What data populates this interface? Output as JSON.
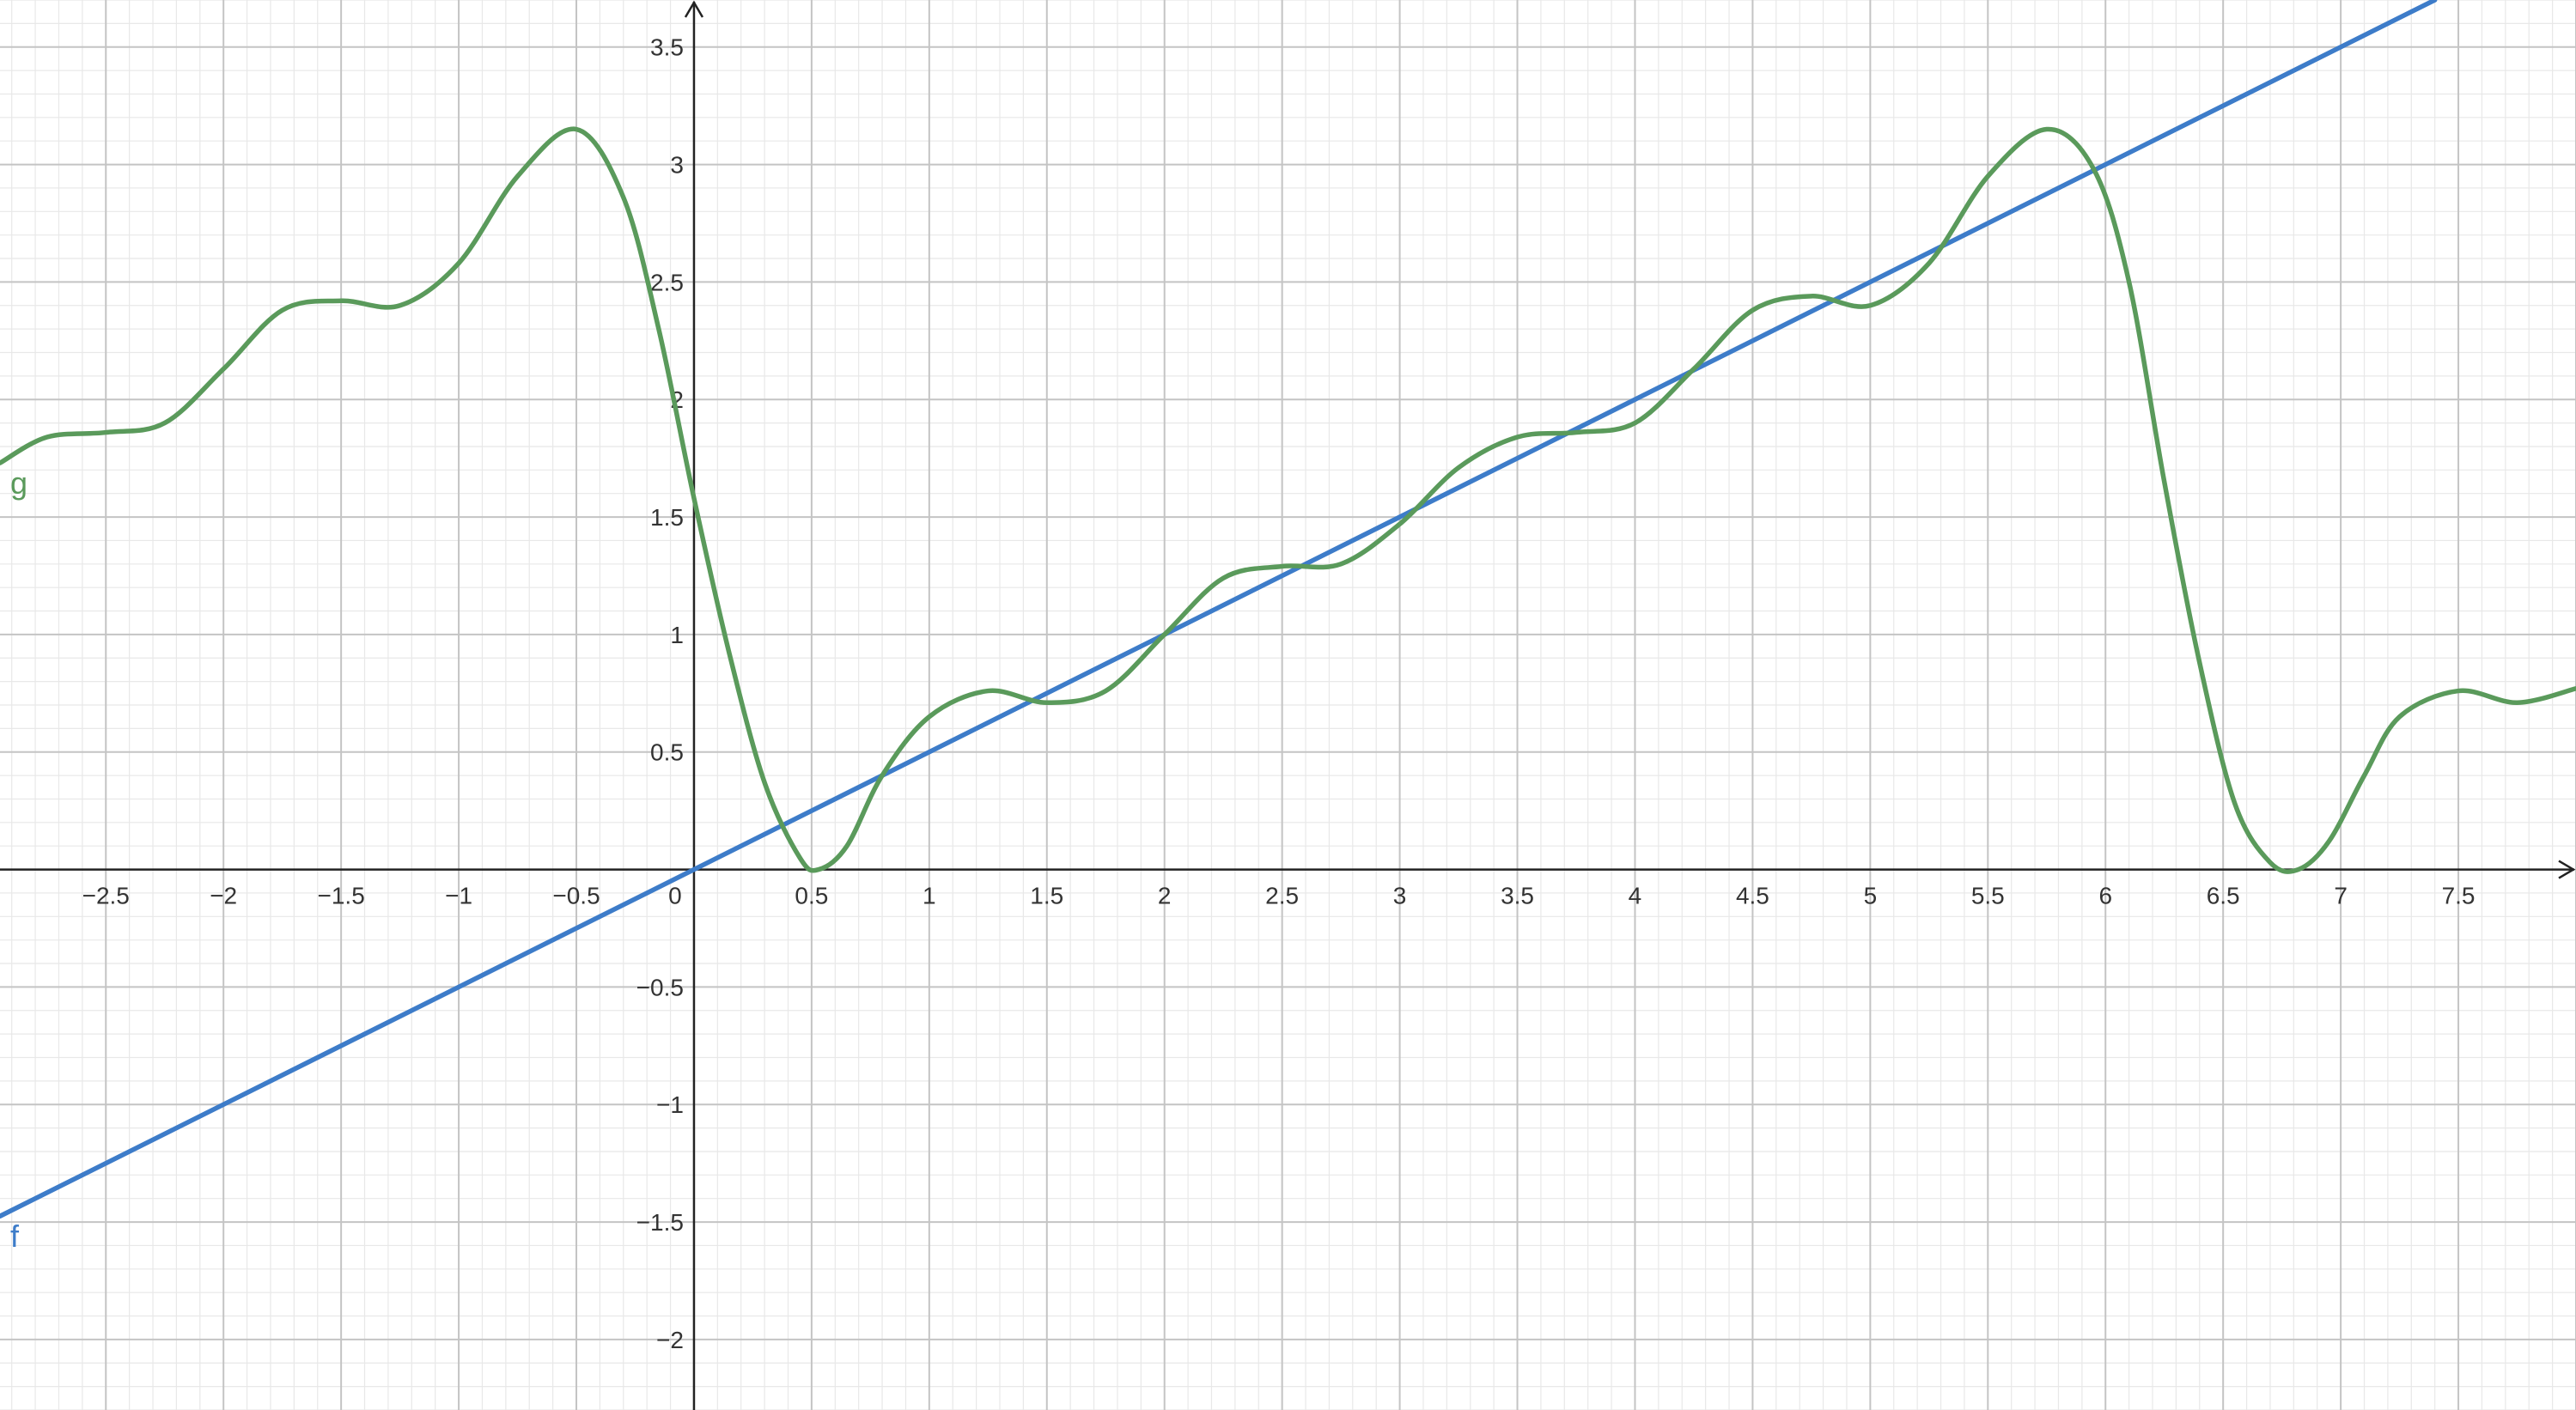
{
  "chart_data": {
    "type": "line",
    "title": "",
    "xlabel": "",
    "ylabel": "",
    "xlim": [
      -2.95,
      8.0
    ],
    "ylim": [
      -2.3,
      3.7
    ],
    "grid": true,
    "minor_grid": true,
    "x_ticks": [
      -2.5,
      -2,
      -1.5,
      -1,
      -0.5,
      0,
      0.5,
      1,
      1.5,
      2,
      2.5,
      3,
      3.5,
      4,
      4.5,
      5,
      5.5,
      6,
      6.5,
      7,
      7.5
    ],
    "x_tick_labels": [
      "−2.5",
      "−2",
      "−1.5",
      "−1",
      "−0.5",
      "0",
      "0.5",
      "1",
      "1.5",
      "2",
      "2.5",
      "3",
      "3.5",
      "4",
      "4.5",
      "5",
      "5.5",
      "6",
      "6.5",
      "7",
      "7.5"
    ],
    "y_ticks": [
      -2,
      -1.5,
      -1,
      -0.5,
      0.5,
      1,
      1.5,
      2,
      2.5,
      3,
      3.5
    ],
    "y_tick_labels": [
      "−2",
      "−1.5",
      "−1",
      "−0.5",
      "0.5",
      "1",
      "1.5",
      "2",
      "2.5",
      "3",
      "3.5"
    ],
    "series": [
      {
        "name": "f",
        "color": "#3d7cc9",
        "x": [
          -2.95,
          0,
          2,
          4,
          6,
          7.4
        ],
        "y": [
          -1.475,
          0,
          1,
          2,
          3,
          3.7
        ]
      },
      {
        "name": "g",
        "color": "#5a9a5b",
        "x": [
          -2.95,
          -2.75,
          -2.5,
          -2.25,
          -2.0,
          -1.75,
          -1.5,
          -1.25,
          -1.0,
          -0.75,
          -0.5,
          -0.3,
          -0.15,
          0.0,
          0.15,
          0.3,
          0.45,
          0.53,
          0.65,
          0.8,
          1.0,
          1.25,
          1.5,
          1.75,
          2.0,
          2.25,
          2.5,
          2.75,
          3.0,
          3.25,
          3.5,
          3.75,
          4.0,
          4.25,
          4.5,
          4.75,
          5.0,
          5.25,
          5.5,
          5.75,
          5.95,
          6.1,
          6.25,
          6.4,
          6.55,
          6.7,
          6.82,
          6.95,
          7.1,
          7.25,
          7.5,
          7.75,
          8.0
        ],
        "y": [
          1.73,
          1.84,
          1.86,
          1.9,
          2.13,
          2.38,
          2.42,
          2.4,
          2.58,
          2.95,
          3.15,
          2.86,
          2.3,
          1.58,
          0.92,
          0.37,
          0.05,
          0.0,
          0.1,
          0.4,
          0.65,
          0.76,
          0.71,
          0.76,
          1.0,
          1.24,
          1.29,
          1.3,
          1.47,
          1.71,
          1.84,
          1.86,
          1.9,
          2.13,
          2.38,
          2.44,
          2.4,
          2.58,
          2.95,
          3.15,
          2.98,
          2.5,
          1.65,
          0.88,
          0.28,
          0.03,
          0.0,
          0.12,
          0.4,
          0.65,
          0.76,
          0.71,
          0.77
        ]
      }
    ]
  }
}
